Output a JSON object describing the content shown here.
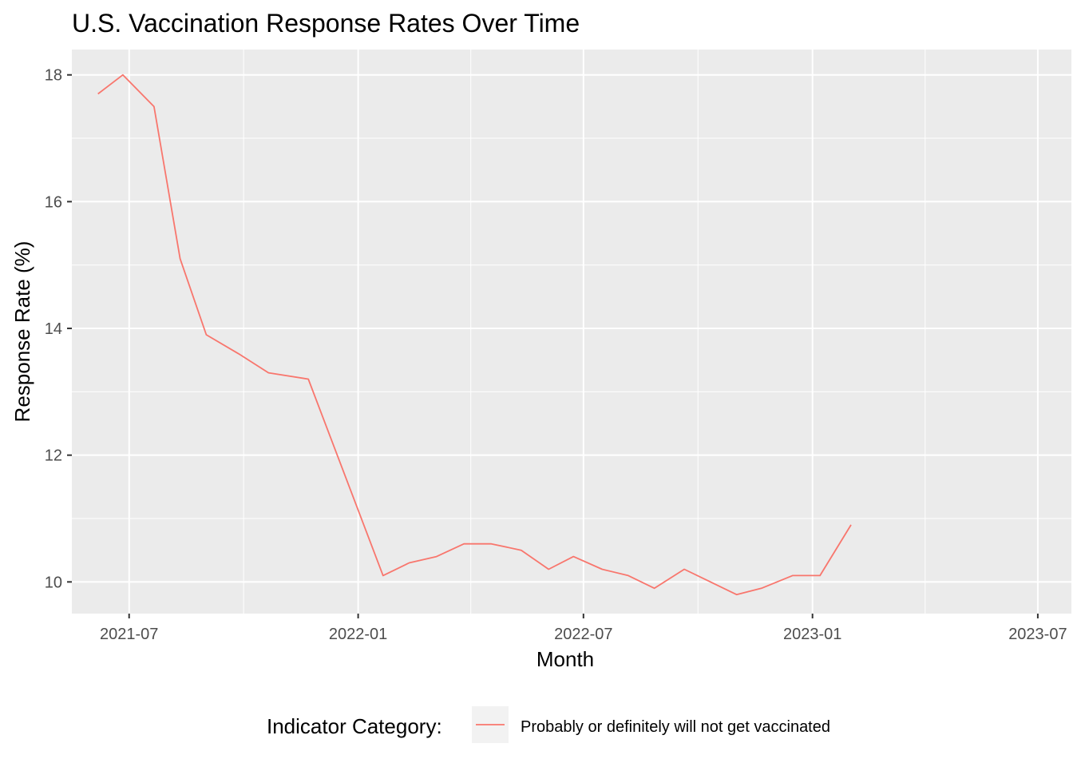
{
  "chart_data": {
    "type": "line",
    "title": "U.S. Vaccination Response Rates Over Time",
    "xlabel": "Month",
    "ylabel": "Response Rate (%)",
    "x_tick_labels": [
      "2021-07",
      "2022-01",
      "2022-07",
      "2023-01",
      "2023-07"
    ],
    "y_tick_labels": [
      "10",
      "12",
      "14",
      "16",
      "18"
    ],
    "xlim": [
      "2021-05-16",
      "2023-07-28"
    ],
    "ylim": [
      9.5,
      18.4
    ],
    "grid": true,
    "legend": {
      "title": "Indicator Category:",
      "placement": "bottom"
    },
    "series": [
      {
        "name": "Probably or definitely will not get vaccinated",
        "color": "#F8766D",
        "points": [
          {
            "x": "2021-06-06",
            "y": 17.7
          },
          {
            "x": "2021-06-26",
            "y": 18.0
          },
          {
            "x": "2021-07-21",
            "y": 17.5
          },
          {
            "x": "2021-08-11",
            "y": 15.1
          },
          {
            "x": "2021-09-01",
            "y": 13.9
          },
          {
            "x": "2021-09-27",
            "y": 13.6
          },
          {
            "x": "2021-10-21",
            "y": 13.3
          },
          {
            "x": "2021-11-22",
            "y": 13.2
          },
          {
            "x": "2022-01-21",
            "y": 10.1
          },
          {
            "x": "2022-02-11",
            "y": 10.3
          },
          {
            "x": "2022-03-05",
            "y": 10.4
          },
          {
            "x": "2022-03-27",
            "y": 10.6
          },
          {
            "x": "2022-04-18",
            "y": 10.6
          },
          {
            "x": "2022-05-12",
            "y": 10.5
          },
          {
            "x": "2022-06-03",
            "y": 10.2
          },
          {
            "x": "2022-06-23",
            "y": 10.4
          },
          {
            "x": "2022-07-16",
            "y": 10.2
          },
          {
            "x": "2022-08-06",
            "y": 10.1
          },
          {
            "x": "2022-08-27",
            "y": 9.9
          },
          {
            "x": "2022-09-20",
            "y": 10.2
          },
          {
            "x": "2022-10-11",
            "y": 10.0
          },
          {
            "x": "2022-11-01",
            "y": 9.8
          },
          {
            "x": "2022-11-21",
            "y": 9.9
          },
          {
            "x": "2022-12-16",
            "y": 10.1
          },
          {
            "x": "2023-01-07",
            "y": 10.1
          },
          {
            "x": "2023-02-01",
            "y": 10.9
          }
        ]
      }
    ]
  }
}
